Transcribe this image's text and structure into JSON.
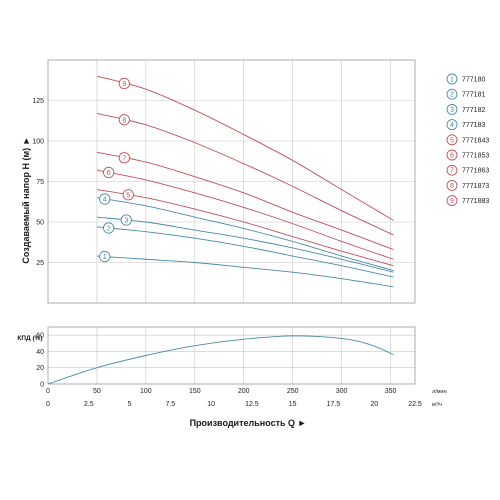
{
  "chart_data": [
    {
      "type": "line",
      "ylabel": "Создаваемый напор H (м) ►",
      "xlabel": "Производительность Q ►",
      "x_unit_primary": "л/мин",
      "x_unit_secondary": "м³/ч",
      "xlim": [
        0,
        375
      ],
      "ylim": [
        0,
        150
      ],
      "x_ticks": [
        0,
        50,
        100,
        150,
        200,
        250,
        300,
        350
      ],
      "x_ticks_secondary": [
        "0",
        "2.5",
        "5",
        "7.5",
        "10",
        "12.5",
        "15",
        "17.5",
        "20",
        "22.5"
      ],
      "y_ticks": [
        25,
        50,
        75,
        100,
        125
      ],
      "grid": true,
      "legend_position": "right",
      "series": [
        {
          "name": "777180",
          "marker": "1",
          "color": "#4a8aa8",
          "x": [
            50,
            100,
            150,
            200,
            250,
            300,
            353
          ],
          "y": [
            29,
            27,
            25,
            22,
            19,
            15,
            10
          ]
        },
        {
          "name": "777181",
          "marker": "2",
          "color": "#4a8aa8",
          "x": [
            50,
            100,
            150,
            200,
            250,
            300,
            353
          ],
          "y": [
            47,
            44,
            40,
            35,
            29,
            23,
            16
          ]
        },
        {
          "name": "777182",
          "marker": "3",
          "color": "#4a8aa8",
          "x": [
            50,
            100,
            150,
            200,
            250,
            300,
            353
          ],
          "y": [
            53,
            50,
            45,
            40,
            34,
            27,
            19
          ]
        },
        {
          "name": "777183",
          "marker": "4",
          "color": "#4a8aa8",
          "x": [
            50,
            100,
            150,
            200,
            250,
            300,
            353
          ],
          "y": [
            65,
            60,
            53,
            46,
            38,
            29,
            20
          ]
        },
        {
          "name": "7771843",
          "marker": "5",
          "color": "#c0505a",
          "x": [
            50,
            100,
            150,
            200,
            250,
            300,
            353
          ],
          "y": [
            70,
            65,
            58,
            50,
            41,
            32,
            23
          ]
        },
        {
          "name": "7771853",
          "marker": "6",
          "color": "#c0505a",
          "x": [
            50,
            100,
            150,
            200,
            250,
            300,
            353
          ],
          "y": [
            82,
            76,
            68,
            59,
            49,
            38,
            27
          ]
        },
        {
          "name": "7771863",
          "marker": "7",
          "color": "#c0505a",
          "x": [
            50,
            100,
            150,
            200,
            250,
            300,
            353
          ],
          "y": [
            93,
            87,
            78,
            68,
            56,
            45,
            33
          ]
        },
        {
          "name": "7771873",
          "marker": "8",
          "color": "#c0505a",
          "x": [
            50,
            100,
            150,
            200,
            250,
            300,
            353
          ],
          "y": [
            117,
            110,
            99,
            86,
            72,
            57,
            42
          ]
        },
        {
          "name": "7771883",
          "marker": "9",
          "color": "#c0505a",
          "x": [
            50,
            100,
            150,
            200,
            250,
            300,
            353
          ],
          "y": [
            140,
            132,
            119,
            104,
            88,
            70,
            51
          ]
        }
      ]
    },
    {
      "type": "line",
      "ylabel": "КПД (%)",
      "xlim": [
        0,
        375
      ],
      "ylim": [
        0,
        70
      ],
      "y_ticks": [
        0,
        20,
        40,
        60
      ],
      "grid": true,
      "series": [
        {
          "color": "#4a8aa8",
          "x": [
            0,
            50,
            100,
            150,
            200,
            250,
            300,
            330,
            353
          ],
          "y": [
            0,
            20,
            35,
            47,
            55,
            59,
            56,
            48,
            36
          ]
        }
      ]
    }
  ]
}
